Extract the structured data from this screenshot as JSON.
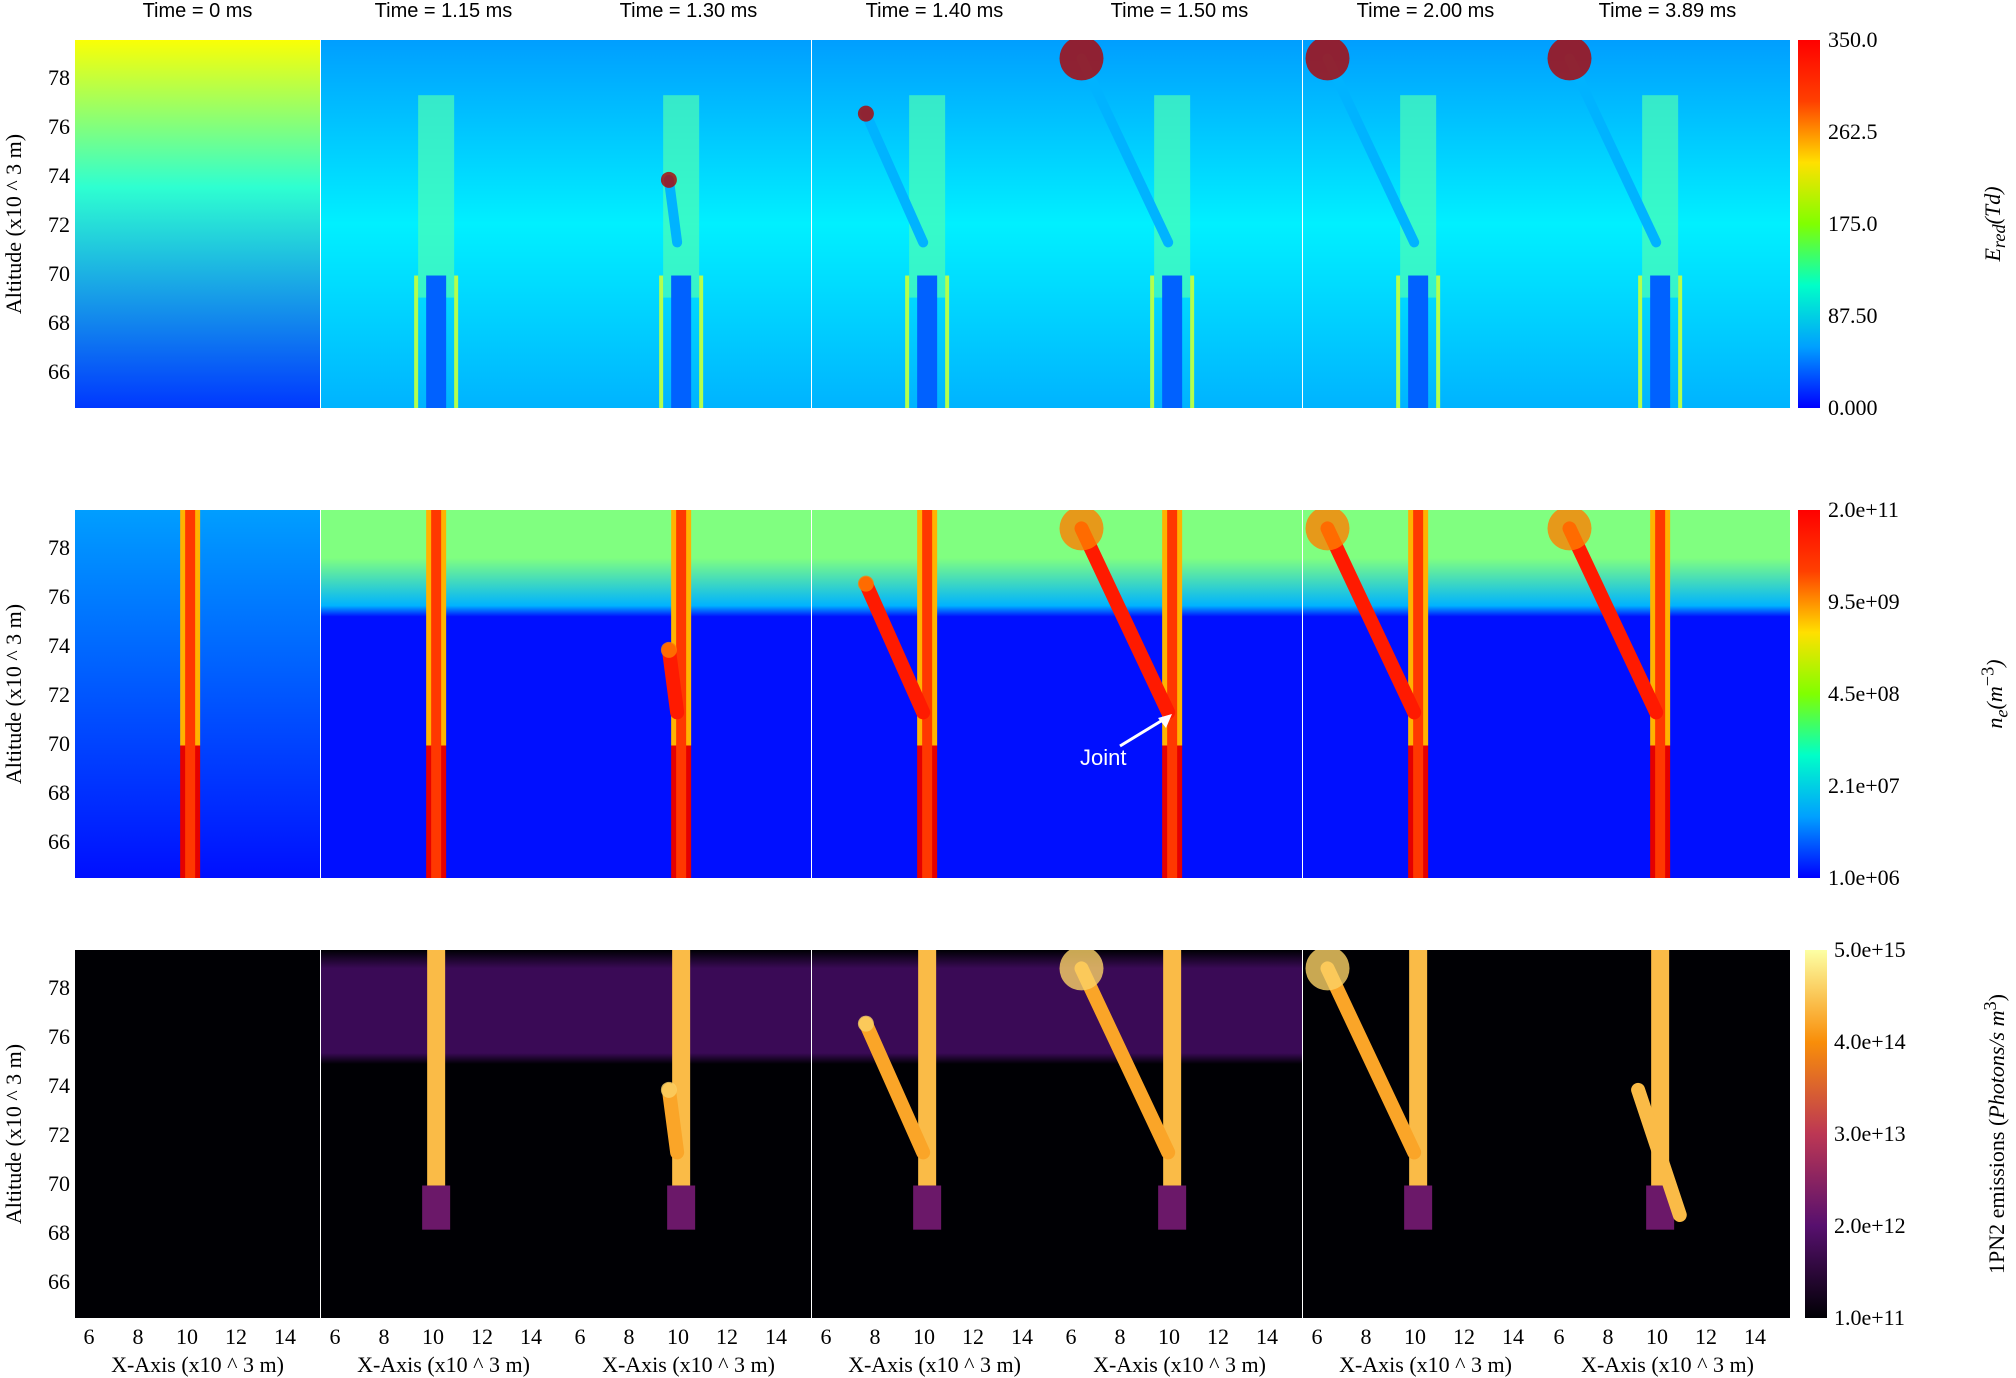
{
  "time_titles": [
    "Time = 0 ms",
    "Time = 1.15 ms",
    "Time = 1.30 ms",
    "Time = 1.40 ms",
    "Time = 1.50 ms",
    "Time = 2.00 ms",
    "Time = 3.89 ms"
  ],
  "rows": [
    {
      "ylabel": "Altitude (x10 ^ 3 m)",
      "yticks": [
        "78",
        "76",
        "74",
        "72",
        "70",
        "68",
        "66"
      ],
      "colorbar_ticks": [
        "350.0",
        "262.5",
        "175.0",
        "87.50",
        "0.000"
      ],
      "colorbar_label": "E_red(Td)",
      "colorbar_label_main": "E",
      "colorbar_label_sub": "red",
      "colorbar_label_rest": "(Td)",
      "colormap": "jet",
      "colors": {
        "low": "#0a2cff",
        "mid": "#14e0c8",
        "high": "#ff1200"
      }
    },
    {
      "ylabel": "Altitude (x10 ^ 3 m)",
      "yticks": [
        "78",
        "76",
        "74",
        "72",
        "70",
        "68",
        "66"
      ],
      "colorbar_ticks": [
        "2.0e+11",
        "9.5e+09",
        "4.5e+08",
        "2.1e+07",
        "1.0e+06"
      ],
      "colorbar_label_main": "n",
      "colorbar_label_sub": "e",
      "colorbar_label_rest": "(m",
      "colorbar_label_sup": "−3",
      "colorbar_label_end": ")",
      "colormap": "jet",
      "annotation": "Joint"
    },
    {
      "ylabel": "Altitude (x10 ^ 3 m)",
      "yticks": [
        "78",
        "76",
        "74",
        "72",
        "70",
        "68",
        "66"
      ],
      "colorbar_ticks": [
        "5.0e+15",
        "4.0e+14",
        "3.0e+13",
        "2.0e+12",
        "1.0e+11"
      ],
      "colorbar_label_main": "1PN2 emissions (",
      "colorbar_label_italic": "Photons/s m",
      "colorbar_label_sup": "3",
      "colorbar_label_end": ")",
      "colormap": "inferno"
    }
  ],
  "xticks": [
    "6",
    "8",
    "10",
    "12",
    "14"
  ],
  "xlabel": "X-Axis (x10 ^ 3 m)"
}
